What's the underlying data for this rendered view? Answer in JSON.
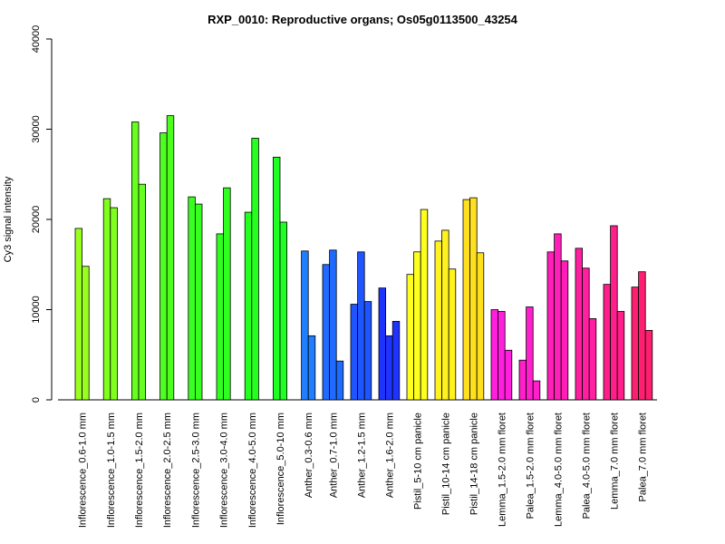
{
  "chart_data": {
    "type": "bar",
    "title": "RXP_0010: Reproductive organs; Os05g0113500_43254",
    "xlabel": "",
    "ylabel": "Cy3 signal intensity",
    "ylim": [
      0,
      40000
    ],
    "yticks": [
      "0",
      "10000",
      "20000",
      "30000",
      "40000"
    ],
    "grid": false,
    "legend": "none",
    "groups": [
      {
        "label": "Inflorescence_0.6-1.0 mm",
        "color": "#99ff1f",
        "values": [
          19000,
          14800
        ]
      },
      {
        "label": "Inflorescence_1.0-1.5 mm",
        "color": "#80ff1f",
        "values": [
          22300,
          21300
        ]
      },
      {
        "label": "Inflorescence_1.5-2.0 mm",
        "color": "#66ff1f",
        "values": [
          30800,
          23900
        ]
      },
      {
        "label": "Inflorescence_2.0-2.5 mm",
        "color": "#4dff1f",
        "values": [
          29600,
          31500
        ]
      },
      {
        "label": "Inflorescence_2.5-3.0 mm",
        "color": "#38ff1f",
        "values": [
          22500,
          21700
        ]
      },
      {
        "label": "Inflorescence_3.0-4.0 mm",
        "color": "#2eff1f",
        "values": [
          18400,
          23500
        ]
      },
      {
        "label": "Inflorescence_4.0-5.0 mm",
        "color": "#24ff1f",
        "values": [
          20800,
          29000
        ]
      },
      {
        "label": "Inflorescence_5.0-10 mm",
        "color": "#1fff24",
        "values": [
          26900,
          19700
        ]
      },
      {
        "label": "Anther_0.3-0.6 mm",
        "color": "#1f7fff",
        "values": [
          16500,
          7100
        ]
      },
      {
        "label": "Anther_0.7-1.0 mm",
        "color": "#1f6bff",
        "values": [
          15000,
          16600,
          4300
        ]
      },
      {
        "label": "Anther_1.2-1.5 mm",
        "color": "#1f55ff",
        "values": [
          10600,
          16400,
          10900
        ]
      },
      {
        "label": "Anther_1.6-2.0 mm",
        "color": "#1f33ff",
        "values": [
          12400,
          7100,
          8700
        ]
      },
      {
        "label": "Pistil_5-10 cm panicle",
        "color": "#ffff1f",
        "values": [
          13900,
          16400,
          21100
        ]
      },
      {
        "label": "Pistil_10-14 cm panicle",
        "color": "#fff21f",
        "values": [
          17600,
          18800,
          14500
        ]
      },
      {
        "label": "Pistil_14-18 cm panicle",
        "color": "#ffe01f",
        "values": [
          22200,
          22400,
          16300
        ]
      },
      {
        "label": "Lemma_1.5-2.0 mm floret",
        "color": "#ff1fdd",
        "values": [
          10000,
          9800,
          5500
        ]
      },
      {
        "label": "Palea_1.5-2.0 mm floret",
        "color": "#ff1fcc",
        "values": [
          4400,
          10300,
          2100
        ]
      },
      {
        "label": "Lemma_4.0-5.0 mm floret",
        "color": "#ff1fb8",
        "values": [
          16400,
          18400,
          15400
        ]
      },
      {
        "label": "Palea_4.0-5.0 mm floret",
        "color": "#ff1fa0",
        "values": [
          16800,
          14600,
          9000
        ]
      },
      {
        "label": "Lemma_7.0 mm floret",
        "color": "#ff1f8a",
        "values": [
          12800,
          19300,
          9800
        ]
      },
      {
        "label": "Palea_7.0 mm floret",
        "color": "#ff1f70",
        "values": [
          12500,
          14200,
          7700
        ]
      }
    ]
  }
}
